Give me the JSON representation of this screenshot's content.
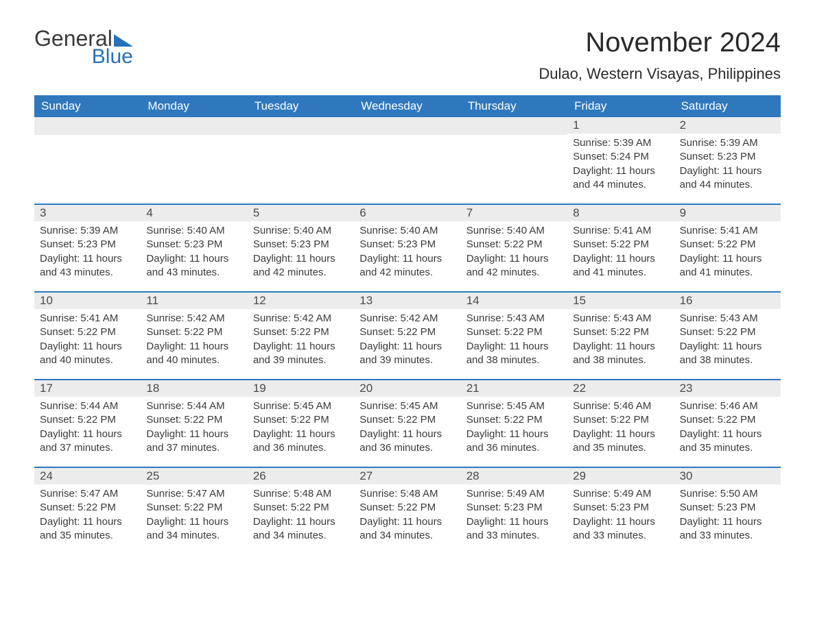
{
  "logo": {
    "text1": "General",
    "text2": "Blue"
  },
  "title": "November 2024",
  "location": "Dulao, Western Visayas, Philippines",
  "colors": {
    "header_bg": "#2f78bd",
    "header_text": "#ffffff",
    "daynum_bg": "#ececec",
    "border": "#2f78bd",
    "logo_blue": "#2771b8"
  },
  "weekdays": [
    "Sunday",
    "Monday",
    "Tuesday",
    "Wednesday",
    "Thursday",
    "Friday",
    "Saturday"
  ],
  "weeks": [
    [
      null,
      null,
      null,
      null,
      null,
      {
        "n": "1",
        "sr": "5:39 AM",
        "ss": "5:24 PM",
        "dl": "11 hours and 44 minutes."
      },
      {
        "n": "2",
        "sr": "5:39 AM",
        "ss": "5:23 PM",
        "dl": "11 hours and 44 minutes."
      }
    ],
    [
      {
        "n": "3",
        "sr": "5:39 AM",
        "ss": "5:23 PM",
        "dl": "11 hours and 43 minutes."
      },
      {
        "n": "4",
        "sr": "5:40 AM",
        "ss": "5:23 PM",
        "dl": "11 hours and 43 minutes."
      },
      {
        "n": "5",
        "sr": "5:40 AM",
        "ss": "5:23 PM",
        "dl": "11 hours and 42 minutes."
      },
      {
        "n": "6",
        "sr": "5:40 AM",
        "ss": "5:23 PM",
        "dl": "11 hours and 42 minutes."
      },
      {
        "n": "7",
        "sr": "5:40 AM",
        "ss": "5:22 PM",
        "dl": "11 hours and 42 minutes."
      },
      {
        "n": "8",
        "sr": "5:41 AM",
        "ss": "5:22 PM",
        "dl": "11 hours and 41 minutes."
      },
      {
        "n": "9",
        "sr": "5:41 AM",
        "ss": "5:22 PM",
        "dl": "11 hours and 41 minutes."
      }
    ],
    [
      {
        "n": "10",
        "sr": "5:41 AM",
        "ss": "5:22 PM",
        "dl": "11 hours and 40 minutes."
      },
      {
        "n": "11",
        "sr": "5:42 AM",
        "ss": "5:22 PM",
        "dl": "11 hours and 40 minutes."
      },
      {
        "n": "12",
        "sr": "5:42 AM",
        "ss": "5:22 PM",
        "dl": "11 hours and 39 minutes."
      },
      {
        "n": "13",
        "sr": "5:42 AM",
        "ss": "5:22 PM",
        "dl": "11 hours and 39 minutes."
      },
      {
        "n": "14",
        "sr": "5:43 AM",
        "ss": "5:22 PM",
        "dl": "11 hours and 38 minutes."
      },
      {
        "n": "15",
        "sr": "5:43 AM",
        "ss": "5:22 PM",
        "dl": "11 hours and 38 minutes."
      },
      {
        "n": "16",
        "sr": "5:43 AM",
        "ss": "5:22 PM",
        "dl": "11 hours and 38 minutes."
      }
    ],
    [
      {
        "n": "17",
        "sr": "5:44 AM",
        "ss": "5:22 PM",
        "dl": "11 hours and 37 minutes."
      },
      {
        "n": "18",
        "sr": "5:44 AM",
        "ss": "5:22 PM",
        "dl": "11 hours and 37 minutes."
      },
      {
        "n": "19",
        "sr": "5:45 AM",
        "ss": "5:22 PM",
        "dl": "11 hours and 36 minutes."
      },
      {
        "n": "20",
        "sr": "5:45 AM",
        "ss": "5:22 PM",
        "dl": "11 hours and 36 minutes."
      },
      {
        "n": "21",
        "sr": "5:45 AM",
        "ss": "5:22 PM",
        "dl": "11 hours and 36 minutes."
      },
      {
        "n": "22",
        "sr": "5:46 AM",
        "ss": "5:22 PM",
        "dl": "11 hours and 35 minutes."
      },
      {
        "n": "23",
        "sr": "5:46 AM",
        "ss": "5:22 PM",
        "dl": "11 hours and 35 minutes."
      }
    ],
    [
      {
        "n": "24",
        "sr": "5:47 AM",
        "ss": "5:22 PM",
        "dl": "11 hours and 35 minutes."
      },
      {
        "n": "25",
        "sr": "5:47 AM",
        "ss": "5:22 PM",
        "dl": "11 hours and 34 minutes."
      },
      {
        "n": "26",
        "sr": "5:48 AM",
        "ss": "5:22 PM",
        "dl": "11 hours and 34 minutes."
      },
      {
        "n": "27",
        "sr": "5:48 AM",
        "ss": "5:22 PM",
        "dl": "11 hours and 34 minutes."
      },
      {
        "n": "28",
        "sr": "5:49 AM",
        "ss": "5:23 PM",
        "dl": "11 hours and 33 minutes."
      },
      {
        "n": "29",
        "sr": "5:49 AM",
        "ss": "5:23 PM",
        "dl": "11 hours and 33 minutes."
      },
      {
        "n": "30",
        "sr": "5:50 AM",
        "ss": "5:23 PM",
        "dl": "11 hours and 33 minutes."
      }
    ]
  ],
  "labels": {
    "sunrise": "Sunrise: ",
    "sunset": "Sunset: ",
    "daylight": "Daylight: "
  }
}
